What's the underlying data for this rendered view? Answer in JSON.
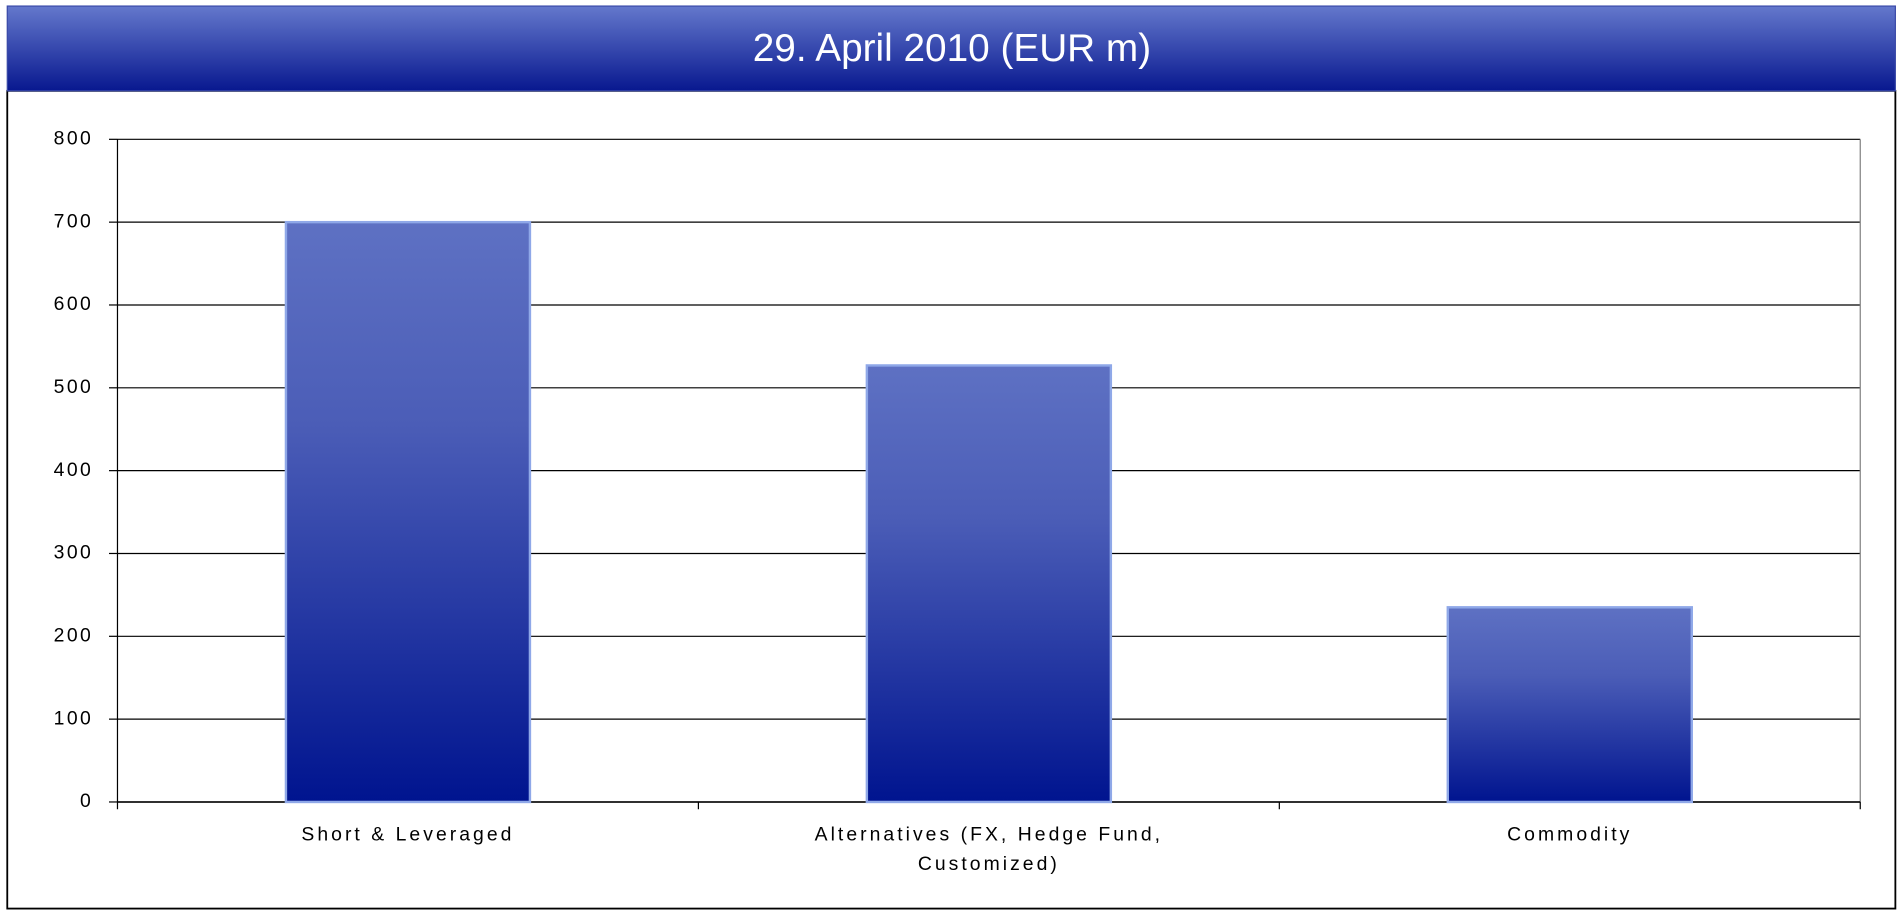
{
  "chart_data": {
    "type": "bar",
    "title": "29. April 2010 (EUR m)",
    "categories": [
      "Short & Leveraged",
      "Alternatives (FX, Hedge Fund, Customized)",
      "Commodity"
    ],
    "values": [
      700,
      527,
      235
    ],
    "color": "#0a1a94",
    "ylim": [
      0,
      800
    ],
    "yticks": [
      0,
      100,
      200,
      300,
      400,
      500,
      600,
      700,
      800
    ],
    "grid": true
  }
}
